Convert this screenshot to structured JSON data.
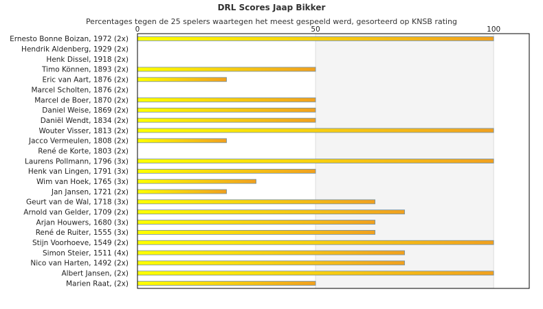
{
  "chart_data": {
    "type": "bar",
    "orientation": "horizontal",
    "title": "DRL Scores Jaap Bikker",
    "subtitle": "Percentages tegen de 25 spelers waartegen het meest gespeeld werd, gesorteerd op KNSB rating",
    "xlim": [
      0,
      110
    ],
    "xticks": [
      "0",
      "50",
      "100"
    ],
    "xtick_values": [
      0,
      50,
      100
    ],
    "categories": [
      "Ernesto Bonne Boizan, 1972 (2x)",
      "Hendrik Aldenberg, 1929 (2x)",
      "Henk Dissel, 1918 (2x)",
      "Timo Können, 1893 (2x)",
      "Eric van Aart, 1876 (2x)",
      "Marcel Scholten, 1876 (2x)",
      "Marcel de Boer, 1870 (2x)",
      "Daniel Weise, 1869 (2x)",
      "Daniël Wendt, 1834 (2x)",
      "Wouter Visser, 1813 (2x)",
      "Jacco Vermeulen, 1808 (2x)",
      "René de Korte, 1803 (2x)",
      "Laurens Pollmann, 1796 (3x)",
      "Henk van Lingen, 1791 (3x)",
      "Wim van Hoek, 1765 (3x)",
      "Jan Jansen, 1721 (2x)",
      "Geurt van de Wal, 1718 (3x)",
      "Arnold van Gelder, 1709 (2x)",
      "Arjan Houwers, 1680 (3x)",
      "René de Ruiter, 1555 (3x)",
      "Stijn Voorhoeve, 1549 (2x)",
      "Simon Steier, 1511 (4x)",
      "Nico van Harten, 1492 (2x)",
      "Albert Jansen,  (2x)",
      "Marien Raat,  (2x)"
    ],
    "values": [
      100,
      0,
      0,
      50,
      25,
      0,
      50,
      50,
      50,
      100,
      25,
      0,
      100,
      50,
      33.3,
      25,
      66.7,
      75,
      66.7,
      66.7,
      100,
      75,
      75,
      100,
      50
    ],
    "grid": true,
    "legend": "none",
    "colors": {
      "bar_left": "#ffff00",
      "bar_right": "#f0a020",
      "bar_border": "#6f8fa8",
      "plot_bg": "#ffffff",
      "band_bg": "#f4f4f4",
      "axis": "#000000",
      "grid": "#dddddd"
    }
  }
}
